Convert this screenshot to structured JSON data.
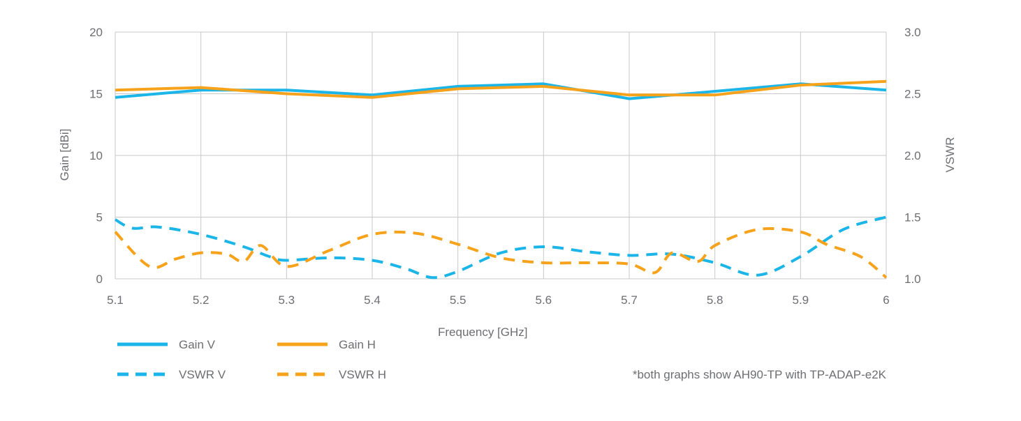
{
  "chart_data": {
    "type": "line",
    "xlabel": "Frequency [GHz]",
    "ylabel_left": "Gain [dBi]",
    "ylabel_right": "VSWR",
    "xlim": [
      5.1,
      6.0
    ],
    "ylim_left": [
      0,
      20
    ],
    "ylim_right": [
      1.0,
      3.0
    ],
    "x_ticks": [
      "5.1",
      "5.2",
      "5.3",
      "5.4",
      "5.5",
      "5.6",
      "5.7",
      "5.8",
      "5.9",
      "6"
    ],
    "y_left_ticks": [
      "0",
      "5",
      "10",
      "15",
      "20"
    ],
    "y_right_ticks": [
      "1.0",
      "1.5",
      "2.0",
      "2.5",
      "3.0"
    ],
    "grid": true,
    "legend_position": "bottom-left",
    "footnote": "*both graphs show AH90-TP with TP-ADAP-e2K",
    "colors": {
      "v": "#1cb5e8",
      "h": "#f7a21b",
      "grid": "#c8c8c8"
    },
    "series": [
      {
        "name": "Gain V",
        "axis": "left",
        "style": "solid",
        "color": "#1cb5e8",
        "x": [
          5.1,
          5.2,
          5.3,
          5.4,
          5.5,
          5.6,
          5.7,
          5.8,
          5.9,
          6.0
        ],
        "values": [
          14.7,
          15.3,
          15.3,
          14.9,
          15.6,
          15.8,
          14.6,
          15.2,
          15.8,
          15.3
        ]
      },
      {
        "name": "Gain H",
        "axis": "left",
        "style": "solid",
        "color": "#f7a21b",
        "x": [
          5.1,
          5.2,
          5.3,
          5.4,
          5.5,
          5.6,
          5.7,
          5.8,
          5.9,
          6.0
        ],
        "values": [
          15.3,
          15.5,
          15.0,
          14.7,
          15.4,
          15.6,
          14.9,
          14.9,
          15.7,
          16.0
        ]
      },
      {
        "name": "VSWR V",
        "axis": "right",
        "style": "dashed",
        "color": "#1cb5e8",
        "x": [
          5.1,
          5.12,
          5.15,
          5.2,
          5.25,
          5.28,
          5.3,
          5.35,
          5.4,
          5.44,
          5.47,
          5.5,
          5.55,
          5.6,
          5.65,
          5.7,
          5.75,
          5.8,
          5.85,
          5.9,
          5.95,
          6.0
        ],
        "values": [
          1.48,
          1.41,
          1.42,
          1.36,
          1.26,
          1.18,
          1.15,
          1.17,
          1.15,
          1.08,
          1.01,
          1.06,
          1.21,
          1.26,
          1.22,
          1.19,
          1.2,
          1.13,
          1.03,
          1.18,
          1.4,
          1.5
        ]
      },
      {
        "name": "VSWR H",
        "axis": "right",
        "style": "dashed",
        "color": "#f7a21b",
        "x": [
          5.1,
          5.14,
          5.17,
          5.2,
          5.23,
          5.25,
          5.27,
          5.3,
          5.35,
          5.4,
          5.45,
          5.5,
          5.55,
          5.6,
          5.65,
          5.7,
          5.73,
          5.75,
          5.78,
          5.8,
          5.85,
          5.9,
          5.93,
          5.97,
          6.0
        ],
        "values": [
          1.38,
          1.1,
          1.16,
          1.21,
          1.2,
          1.14,
          1.27,
          1.1,
          1.23,
          1.36,
          1.37,
          1.28,
          1.17,
          1.13,
          1.13,
          1.12,
          1.05,
          1.21,
          1.14,
          1.27,
          1.4,
          1.38,
          1.28,
          1.18,
          1.01
        ]
      }
    ]
  }
}
